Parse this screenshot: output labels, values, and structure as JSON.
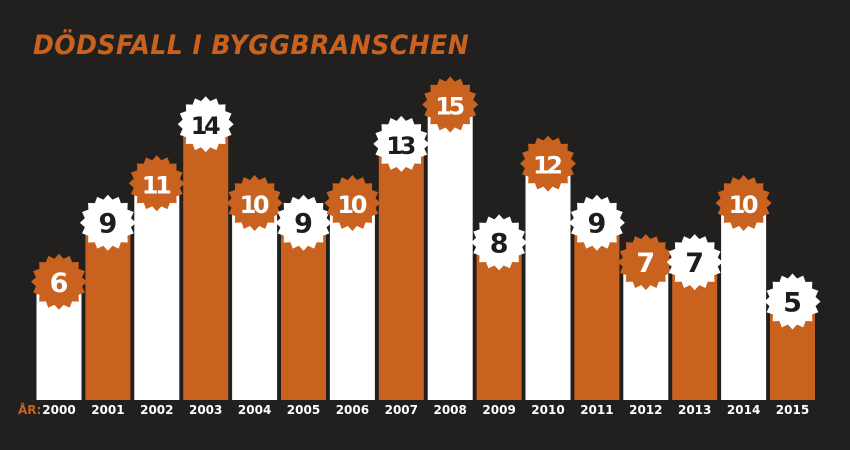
{
  "chart_data": {
    "type": "bar",
    "title": "DÖDSFALL I BYGGBRANSCHEN",
    "xlabel": "ÅR:",
    "ylabel": "",
    "categories": [
      "2000",
      "2001",
      "2002",
      "2003",
      "2004",
      "2005",
      "2006",
      "2007",
      "2008",
      "2009",
      "2010",
      "2011",
      "2012",
      "2013",
      "2014",
      "2015"
    ],
    "values": [
      6,
      9,
      11,
      14,
      10,
      9,
      10,
      13,
      15,
      8,
      12,
      9,
      7,
      7,
      10,
      5
    ],
    "ylim": [
      0,
      15
    ],
    "grid": false,
    "legend": "none"
  },
  "colors": {
    "background": "#221f1f",
    "orange": "#c8621e",
    "white": "#ffffff",
    "badge_text": "#1f1c1c"
  },
  "badge_icon": "saw-blade-icon"
}
